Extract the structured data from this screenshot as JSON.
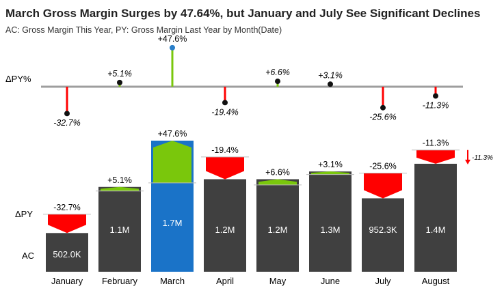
{
  "title": "March Gross Margin Surges by 47.64%, but January and July See Significant Declines",
  "subtitle": "AC: Gross Margin This Year, PY: Gross Margin Last Year by Month(Date)",
  "row_labels": {
    "dpy_pct": "ΔPY%",
    "dpy": "ΔPY",
    "ac": "AC"
  },
  "colors": {
    "ac_bar": "#404040",
    "highlight_bar": "#1a73c8",
    "positive": "#7ac70c",
    "negative": "#ff0000",
    "baseline": "#9e9e9e",
    "dot": "#111111",
    "highlight_dot": "#2a7fc9"
  },
  "chart_data": {
    "type": "bar",
    "categories": [
      "January",
      "February",
      "March",
      "April",
      "May",
      "June",
      "July",
      "August"
    ],
    "ac_values": [
      502000,
      1100000,
      1700000,
      1200000,
      1200000,
      1300000,
      952300,
      1400000
    ],
    "ac_labels": [
      "502.0K",
      "1.1M",
      "1.7M",
      "1.2M",
      "1.2M",
      "1.3M",
      "952.3K",
      "1.4M"
    ],
    "dpy_pct": [
      -32.7,
      5.1,
      47.6,
      -19.4,
      6.6,
      3.1,
      -25.6,
      -11.3
    ],
    "dpy_pct_labels": [
      "-32.7%",
      "+5.1%",
      "+47.6%",
      "-19.4%",
      "+6.6%",
      "+3.1%",
      "-25.6%",
      "-11.3%"
    ],
    "highlight_index": 2,
    "side_annotation": "-11.3%"
  }
}
